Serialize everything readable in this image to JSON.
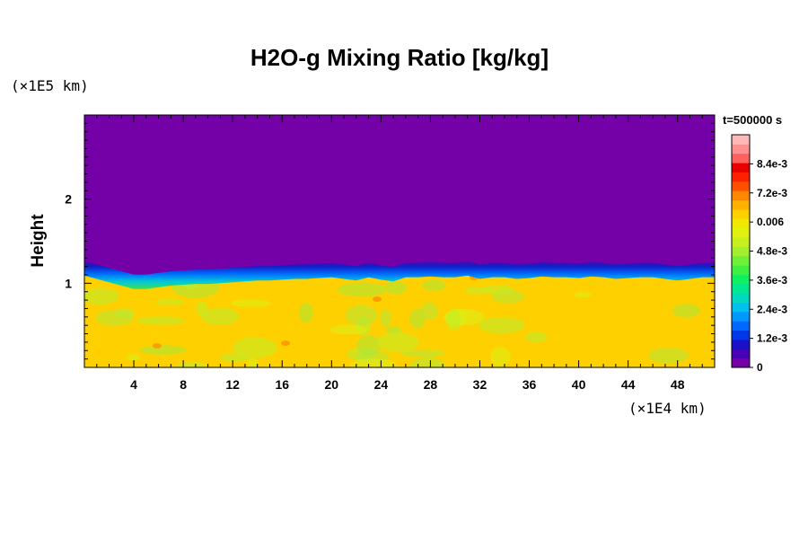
{
  "chart_data": {
    "type": "heatmap",
    "title": "H2O-g Mixing Ratio [kg/kg]",
    "ylabel": "Height",
    "xlabel": "",
    "x_unit": "(×1E4 km)",
    "y_unit": "(×1E5 km)",
    "time_label": "t=500000 s",
    "xlim": [
      0,
      51
    ],
    "ylim": [
      0,
      3
    ],
    "x_ticks": [
      4,
      8,
      12,
      16,
      20,
      24,
      28,
      32,
      36,
      40,
      44,
      48
    ],
    "y_ticks": [
      1,
      2
    ],
    "interface_height": [
      1.22,
      1.18,
      1.14,
      1.1,
      1.06,
      1.06,
      1.08,
      1.1,
      1.11,
      1.12,
      1.12,
      1.13,
      1.14,
      1.15,
      1.16,
      1.16,
      1.17,
      1.18,
      1.18,
      1.19,
      1.2,
      1.18,
      1.16,
      1.2,
      1.17,
      1.15,
      1.2,
      1.2,
      1.21,
      1.2,
      1.2,
      1.22,
      1.18,
      1.2,
      1.2,
      1.18,
      1.19,
      1.21,
      1.2,
      1.2,
      1.19,
      1.21,
      1.2,
      1.18,
      1.19,
      1.2,
      1.2,
      1.18,
      1.16,
      1.18,
      1.2,
      1.2
    ],
    "upper_value": 0,
    "lower_value": 0.0065,
    "colorbar": {
      "vmin": 0,
      "vmax": 0.0096,
      "tick_values": [
        0,
        0.0012,
        0.0024,
        0.0036,
        0.0048,
        0.006,
        0.0072,
        0.0084
      ],
      "tick_labels": [
        "0",
        "1.2e-3",
        "2.4e-3",
        "3.6e-3",
        "4.8e-3",
        "0.006",
        "7.2e-3",
        "8.4e-3"
      ],
      "colors": [
        "#7400a8",
        "#4a00b4",
        "#1a10c8",
        "#0038e8",
        "#0068ff",
        "#0098ff",
        "#00c0f0",
        "#00d8c0",
        "#00e890",
        "#10f060",
        "#40f040",
        "#70f038",
        "#a0f030",
        "#c8f020",
        "#e0f010",
        "#f0e800",
        "#ffd000",
        "#ffb000",
        "#ff8800",
        "#ff5000",
        "#ff2000",
        "#e80000",
        "#ff6060",
        "#ff9090",
        "#ffb8b8"
      ]
    },
    "grid": false
  }
}
